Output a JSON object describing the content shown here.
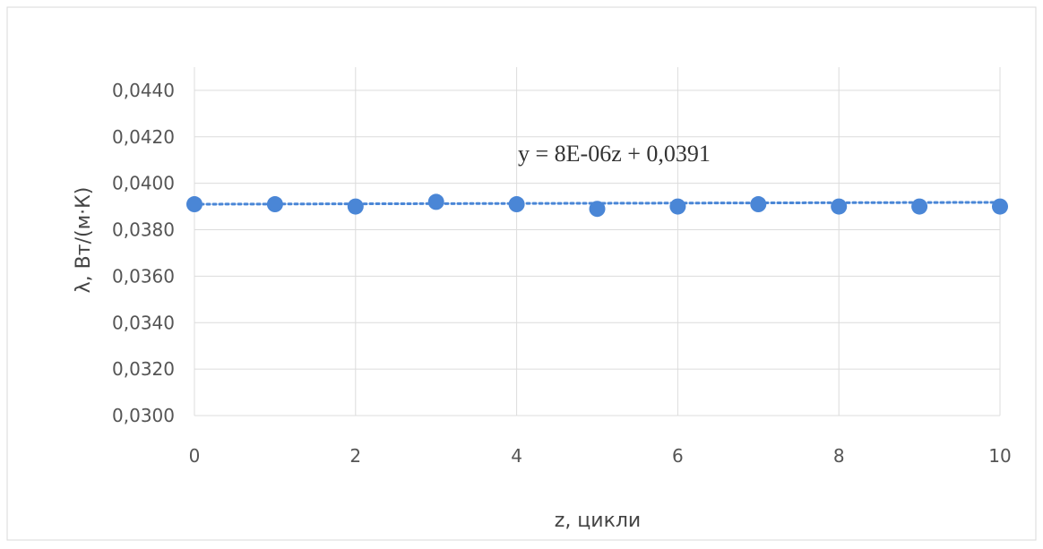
{
  "chart_data": {
    "type": "scatter",
    "xlabel": "z, цикли",
    "ylabel": "λ, Вт/(м·К)",
    "xlim": [
      0,
      10
    ],
    "ylim": [
      0.03,
      0.045
    ],
    "x_ticks": [
      "0",
      "2",
      "4",
      "6",
      "8",
      "10"
    ],
    "y_ticks": [
      "0,0300",
      "0,0320",
      "0,0340",
      "0,0360",
      "0,0380",
      "0,0400",
      "0,0420",
      "0,0440"
    ],
    "grid": true,
    "series": [
      {
        "x": [
          0,
          1,
          2,
          3,
          4,
          5,
          6,
          7,
          8,
          9,
          10
        ],
        "values": [
          0.0391,
          0.0391,
          0.039,
          0.0392,
          0.0391,
          0.0389,
          0.039,
          0.0391,
          0.039,
          0.039,
          0.039
        ]
      }
    ],
    "trendline": {
      "type": "linear",
      "slope": 8e-06,
      "intercept": 0.0391,
      "equation": "y = 8E-06z + 0,0391"
    },
    "colors": {
      "marker": "#4a86d6",
      "trendline": "#4a86d6"
    }
  }
}
